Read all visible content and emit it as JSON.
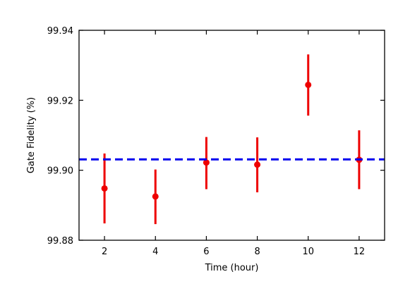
{
  "chart_data": {
    "type": "scatter",
    "xlabel": "Time (hour)",
    "ylabel": "Gate Fidelity (%)",
    "xlim": [
      1,
      13
    ],
    "ylim": [
      99.88,
      99.94
    ],
    "xticks": [
      2,
      4,
      6,
      8,
      10,
      12
    ],
    "xtick_labels": [
      "2",
      "4",
      "6",
      "8",
      "10",
      "12"
    ],
    "yticks": [
      99.88,
      99.9,
      99.92,
      99.94
    ],
    "ytick_labels": [
      "99.88",
      "99.90",
      "99.92",
      "99.94"
    ],
    "grid": false,
    "series": [
      {
        "x": [
          2,
          4,
          6,
          8,
          10,
          12
        ],
        "y": [
          99.8948,
          99.8925,
          99.9022,
          99.9016,
          99.9244,
          99.903
        ],
        "yerr_low": [
          99.8848,
          99.8846,
          99.8946,
          99.8937,
          99.9156,
          99.8946
        ],
        "yerr_high": [
          99.9048,
          99.9002,
          99.9095,
          99.9094,
          99.9331,
          99.9114
        ],
        "color": "#ee0000"
      }
    ],
    "reference_line": {
      "y": 99.9031,
      "style": "dashed",
      "color": "#0000ee"
    }
  }
}
